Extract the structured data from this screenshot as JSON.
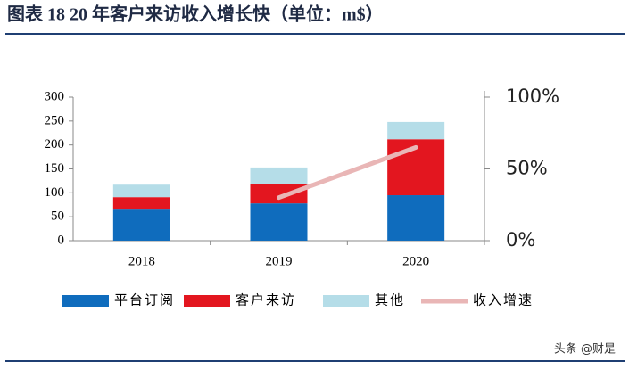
{
  "chart_data": {
    "type": "bar",
    "stacked": true,
    "title": "图表 18   20 年客户来访收入增长快（单位：m$）",
    "categories": [
      "2018",
      "2019",
      "2020"
    ],
    "series": [
      {
        "name": "平台订阅",
        "color": "#0f6cbd",
        "values": [
          65,
          78,
          95
        ]
      },
      {
        "name": "客户来访",
        "color": "#e3161f",
        "values": [
          26,
          41,
          117
        ]
      },
      {
        "name": "其他",
        "color": "#b5dde8",
        "values": [
          26,
          34,
          36
        ]
      },
      {
        "name": "收入增速",
        "type": "line",
        "axis": "y2",
        "color": "#e9b6b6",
        "values": [
          null,
          30,
          65
        ]
      }
    ],
    "ylim": [
      0,
      300
    ],
    "yticks": [
      0,
      50,
      100,
      150,
      200,
      250,
      300
    ],
    "y2lim": [
      0,
      100
    ],
    "y2ticks": [
      {
        "value": 0,
        "label": "0%"
      },
      {
        "value": 50,
        "label": "50%"
      },
      {
        "value": 100,
        "label": "100%"
      }
    ],
    "legend": "bottom",
    "annotations": [
      "头条 @财是"
    ]
  }
}
